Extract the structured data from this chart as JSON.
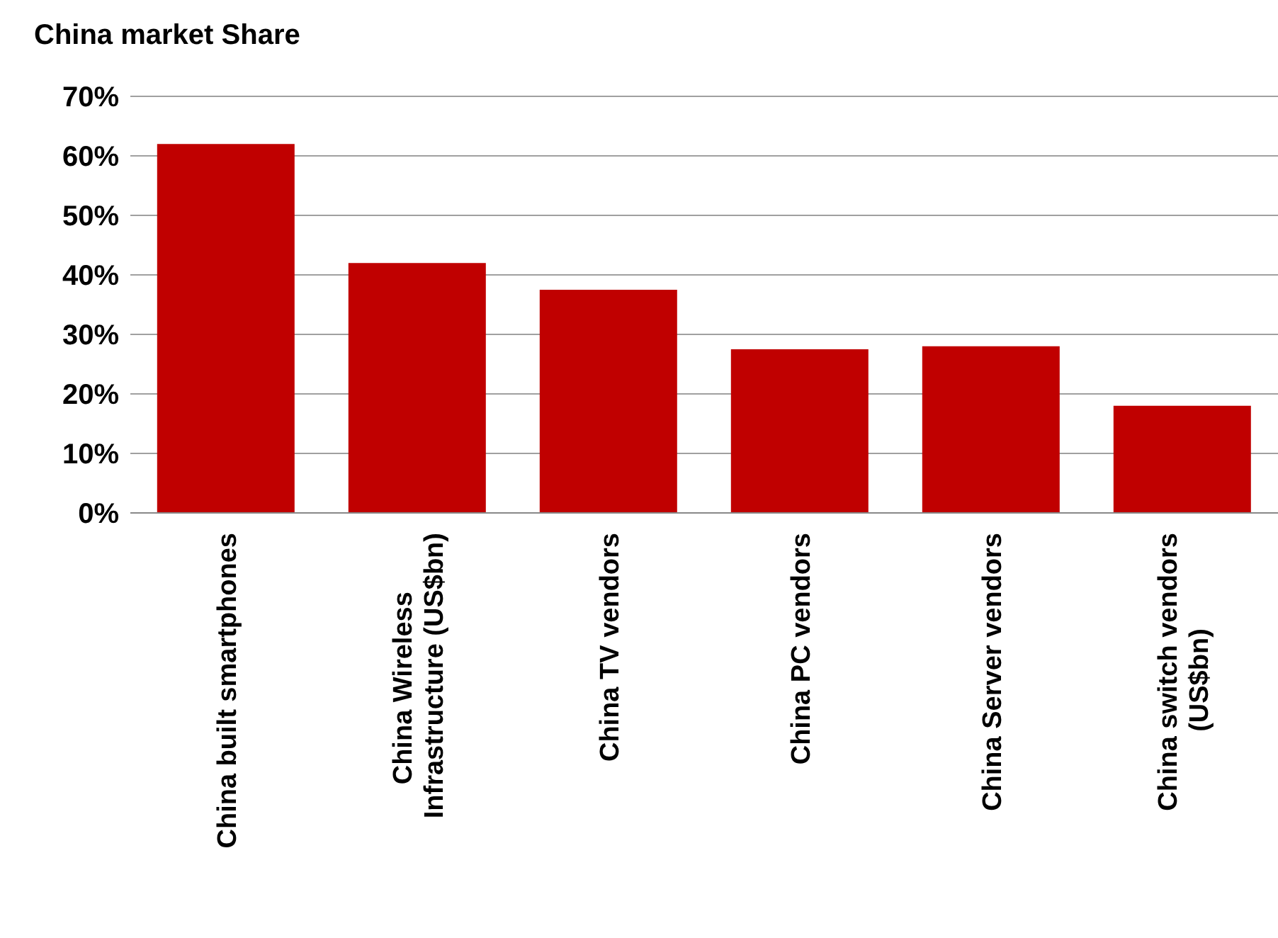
{
  "chart_data": {
    "type": "bar",
    "title": "China market Share",
    "categories": [
      "China built smartphones",
      "China Wireless Infrastructure (US$bn)",
      "China TV vendors",
      "China PC vendors",
      "China Server vendors",
      "China switch vendors (US$bn)"
    ],
    "values": [
      62,
      42,
      37.5,
      27.5,
      28,
      18
    ],
    "color": "#c00000",
    "ylim": [
      0,
      70
    ],
    "yticks": [
      {
        "value": 0,
        "label": "0%"
      },
      {
        "value": 10,
        "label": "10%"
      },
      {
        "value": 20,
        "label": "20%"
      },
      {
        "value": 30,
        "label": "30%"
      },
      {
        "value": 40,
        "label": "40%"
      },
      {
        "value": 50,
        "label": "50%"
      },
      {
        "value": 60,
        "label": "60%"
      },
      {
        "value": 70,
        "label": "70%"
      }
    ],
    "grid": "y",
    "legend": false
  }
}
